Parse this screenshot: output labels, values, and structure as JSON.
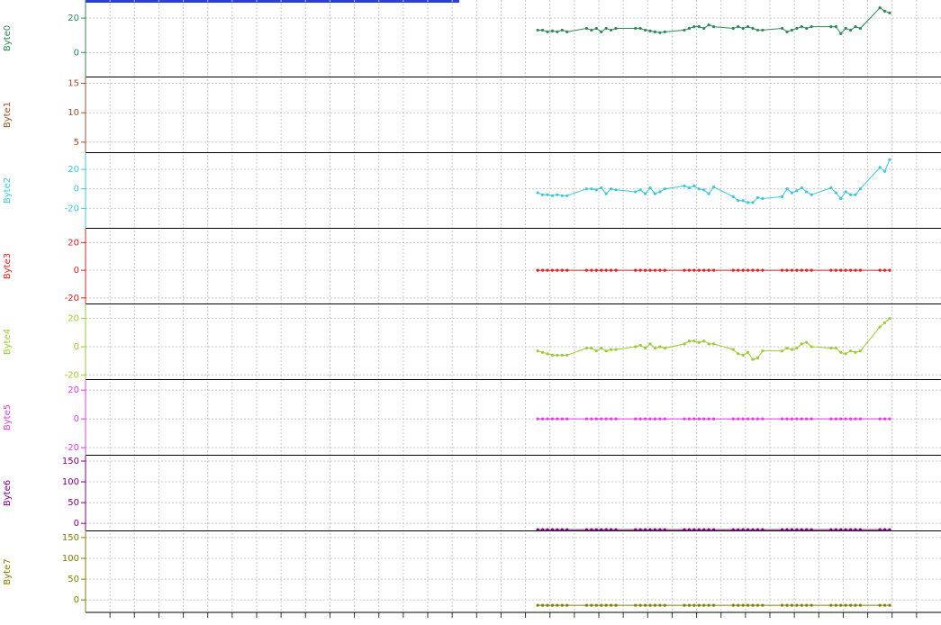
{
  "chart_data": {
    "type": "line",
    "x": [
      18.5,
      18.7,
      18.9,
      19.1,
      19.3,
      19.5,
      19.7,
      20.5,
      20.7,
      20.9,
      21.1,
      21.3,
      21.5,
      21.7,
      22.5,
      22.7,
      22.9,
      23.1,
      23.3,
      23.5,
      23.7,
      24.5,
      24.7,
      24.9,
      25.1,
      25.3,
      25.5,
      25.7,
      26.5,
      26.7,
      26.9,
      27.1,
      27.3,
      27.5,
      27.7,
      28.5,
      28.7,
      28.9,
      29.1,
      29.3,
      29.5,
      29.7,
      30.5,
      30.7,
      30.9,
      31.1,
      31.3,
      31.5,
      31.7,
      32.5,
      32.7,
      32.9
    ],
    "xlim": [
      0,
      35
    ],
    "xticks": [
      1,
      2,
      3,
      4,
      5,
      6,
      7,
      8,
      9,
      10,
      11,
      12,
      13,
      14,
      15,
      16,
      17,
      18,
      19,
      20,
      21,
      22,
      23,
      24,
      25,
      26,
      27,
      28,
      29,
      30,
      31,
      32,
      33,
      34
    ],
    "grid": true,
    "series": [
      {
        "name": "Byte0",
        "color": "#2e8b57",
        "ylim": [
          -14,
          30.5
        ],
        "yticks": [
          0,
          20
        ],
        "values": [
          13,
          13,
          12,
          12.5,
          12,
          13,
          12,
          14,
          13,
          14,
          12,
          14,
          13,
          14,
          14,
          14,
          13,
          12.5,
          12,
          11.5,
          12,
          13,
          14,
          15,
          15,
          14,
          16,
          15,
          14,
          15,
          14,
          15,
          14,
          13,
          13,
          14,
          12,
          13,
          14,
          15,
          14,
          15,
          15,
          15,
          11,
          14,
          13,
          15,
          14,
          26,
          24,
          23
        ]
      },
      {
        "name": "Byte1",
        "color": "#a0522d",
        "ylim": [
          3.3,
          16
        ],
        "yticks": [
          5,
          10,
          15
        ]
      },
      {
        "name": "Byte2",
        "color": "#3cc8d8",
        "ylim": [
          -40,
          36.7
        ],
        "yticks": [
          -20,
          0,
          20
        ],
        "values": [
          -4,
          -6,
          -6,
          -7,
          -6,
          -7,
          -7,
          0,
          0,
          -1,
          1,
          -5,
          0,
          -1,
          -3,
          -1,
          -5,
          1,
          -5,
          -3,
          0,
          3,
          1,
          3,
          0,
          -1,
          -5,
          2,
          -8,
          -12,
          -12,
          -14,
          -14,
          -9,
          -10,
          -8,
          0,
          -4,
          -2,
          1,
          -3,
          -6,
          1,
          -4,
          -10,
          -3,
          -6,
          -6,
          0,
          22,
          18,
          30
        ]
      },
      {
        "name": "Byte3",
        "color": "#e02020",
        "ylim": [
          -24,
          30
        ],
        "yticks": [
          -20,
          0,
          20
        ],
        "values": [
          0,
          0,
          0,
          0,
          0,
          0,
          0,
          0,
          0,
          0,
          0,
          0,
          0,
          0,
          0,
          0,
          0,
          0,
          0,
          0,
          0,
          0,
          0,
          0,
          0,
          0,
          0,
          0,
          0,
          0,
          0,
          0,
          0,
          0,
          0,
          0,
          0,
          0,
          0,
          0,
          0,
          0,
          0,
          0,
          0,
          0,
          0,
          0,
          0,
          0,
          0,
          0
        ]
      },
      {
        "name": "Byte4",
        "color": "#9acd32",
        "ylim": [
          -23,
          30
        ],
        "yticks": [
          -20,
          0,
          20
        ],
        "values": [
          -3,
          -4,
          -5,
          -6,
          -6,
          -6,
          -6,
          -1,
          -1,
          -3,
          -1,
          -3,
          -2,
          -2,
          0,
          1,
          -1,
          2,
          -1,
          0,
          -1,
          2,
          4,
          4,
          3,
          4,
          2,
          2,
          -2,
          -5,
          -6,
          -4,
          -9,
          -8,
          -3,
          -3,
          -1,
          -2,
          -1,
          2,
          3,
          0,
          -1,
          -1,
          -4,
          -5,
          -3,
          -4,
          -3,
          14,
          17,
          20
        ]
      },
      {
        "name": "Byte5",
        "color": "#e040e0",
        "ylim": [
          -25,
          27
        ],
        "yticks": [
          -20,
          0,
          20
        ],
        "values": [
          0,
          0,
          0,
          0,
          0,
          0,
          0,
          0,
          0,
          0,
          0,
          0,
          0,
          0,
          0,
          0,
          0,
          0,
          0,
          0,
          0,
          0,
          0,
          0,
          0,
          0,
          0,
          0,
          0,
          0,
          0,
          0,
          0,
          0,
          0,
          0,
          0,
          0,
          0,
          0,
          0,
          0,
          0,
          0,
          0,
          0,
          0,
          0,
          0,
          0,
          0,
          0
        ]
      },
      {
        "name": "Byte6",
        "color": "#800080",
        "ylim": [
          -17,
          163
        ],
        "yticks": [
          0,
          50,
          100,
          150
        ],
        "values": [
          -15,
          -15,
          -15,
          -15,
          -15,
          -15,
          -15,
          -15,
          -15,
          -15,
          -15,
          -15,
          -15,
          -15,
          -15,
          -15,
          -15,
          -15,
          -15,
          -15,
          -15,
          -15,
          -15,
          -15,
          -15,
          -15,
          -15,
          -15,
          -15,
          -15,
          -15,
          -15,
          -15,
          -15,
          -15,
          -15,
          -15,
          -15,
          -15,
          -15,
          -15,
          -15,
          -15,
          -15,
          -15,
          -15,
          -15,
          -15,
          -15,
          -15,
          -15,
          -15
        ]
      },
      {
        "name": "Byte7",
        "color": "#808000",
        "ylim": [
          -30,
          165
        ],
        "yticks": [
          0,
          50,
          100,
          150
        ],
        "values": [
          -13,
          -13,
          -13,
          -13,
          -13,
          -13,
          -13,
          -13,
          -13,
          -13,
          -13,
          -13,
          -13,
          -13,
          -13,
          -13,
          -13,
          -13,
          -13,
          -13,
          -13,
          -13,
          -13,
          -13,
          -13,
          -13,
          -13,
          -13,
          -13,
          -13,
          -13,
          -13,
          -13,
          -13,
          -13,
          -13,
          -13,
          -13,
          -13,
          -13,
          -13,
          -13,
          -13,
          -13,
          -13,
          -13,
          -13,
          -13,
          -13,
          -13,
          -13,
          -13
        ]
      }
    ]
  }
}
